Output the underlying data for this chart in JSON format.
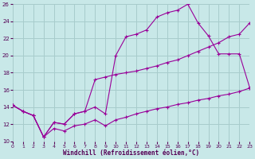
{
  "xlabel": "Windchill (Refroidissement éolien,°C)",
  "bg_color": "#c8e8e8",
  "grid_color": "#a8cccc",
  "line_color": "#990099",
  "xlim": [
    0,
    23
  ],
  "ylim": [
    10,
    26
  ],
  "xticks": [
    0,
    1,
    2,
    3,
    4,
    5,
    6,
    7,
    8,
    9,
    10,
    11,
    12,
    13,
    14,
    15,
    16,
    17,
    18,
    19,
    20,
    21,
    22,
    23
  ],
  "yticks": [
    10,
    12,
    14,
    16,
    18,
    20,
    22,
    24,
    26
  ],
  "line_upper_x": [
    0,
    1,
    2,
    3,
    4,
    5,
    6,
    7,
    8,
    9,
    10,
    11,
    12,
    13,
    14,
    15,
    16,
    17,
    18,
    19,
    20,
    21,
    22,
    23
  ],
  "line_upper_y": [
    14.2,
    13.5,
    13.0,
    10.5,
    12.2,
    12.0,
    13.2,
    13.5,
    14.0,
    13.2,
    20.0,
    22.2,
    22.5,
    23.0,
    24.5,
    25.0,
    25.3,
    26.0,
    23.8,
    22.3,
    20.2,
    20.2,
    20.2,
    16.3
  ],
  "line_mid_x": [
    0,
    1,
    2,
    3,
    4,
    5,
    6,
    7,
    8,
    9,
    10,
    11,
    12,
    13,
    14,
    15,
    16,
    17,
    18,
    19,
    20,
    21,
    22,
    23
  ],
  "line_mid_y": [
    14.2,
    13.5,
    13.0,
    10.5,
    12.2,
    12.0,
    13.2,
    13.5,
    17.2,
    17.5,
    17.8,
    18.0,
    18.2,
    18.5,
    18.8,
    19.2,
    19.5,
    20.0,
    20.5,
    21.0,
    21.5,
    22.2,
    22.5,
    23.8
  ],
  "line_lower_x": [
    0,
    1,
    2,
    3,
    4,
    5,
    6,
    7,
    8,
    9,
    10,
    11,
    12,
    13,
    14,
    15,
    16,
    17,
    18,
    19,
    20,
    21,
    22,
    23
  ],
  "line_lower_y": [
    14.2,
    13.5,
    13.0,
    10.5,
    11.5,
    11.2,
    11.8,
    12.0,
    12.5,
    11.8,
    12.5,
    12.8,
    13.2,
    13.5,
    13.8,
    14.0,
    14.3,
    14.5,
    14.8,
    15.0,
    15.3,
    15.5,
    15.8,
    16.2
  ]
}
